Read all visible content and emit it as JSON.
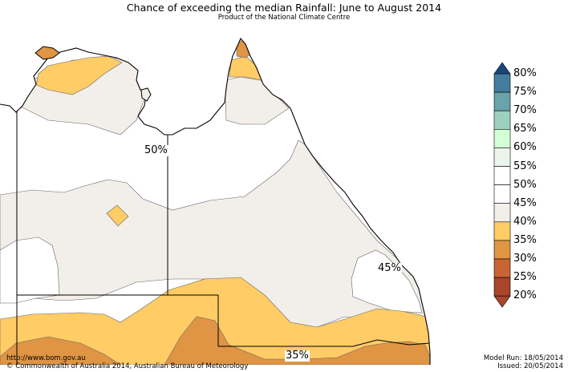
{
  "header": {
    "title": "Chance of exceeding the median Rainfall: June to August 2014",
    "subtitle": "Product of the National Climate Centre"
  },
  "map": {
    "contour_labels": [
      "50%",
      "45%",
      "35%"
    ]
  },
  "legend": {
    "items": [
      {
        "label": "80%",
        "color": "#18457a"
      },
      {
        "label": "75%",
        "color": "#437d9d"
      },
      {
        "label": "70%",
        "color": "#6aa3a9"
      },
      {
        "label": "65%",
        "color": "#9dd0bf"
      },
      {
        "label": "60%",
        "color": "#d3ffd6"
      },
      {
        "label": "55%",
        "color": "#ebf5ec"
      },
      {
        "label": "50%",
        "color": "#ffffff"
      },
      {
        "label": "45%",
        "color": "#ffffff"
      },
      {
        "label": "40%",
        "color": "#f2eee9"
      },
      {
        "label": "35%",
        "color": "#ffcc66"
      },
      {
        "label": "30%",
        "color": "#df9544"
      },
      {
        "label": "25%",
        "color": "#c96434"
      },
      {
        "label": "20%",
        "color": "#a8452a"
      }
    ]
  },
  "footer": {
    "url": "http://www.bom.gov.au",
    "copyright": "©  Commonwealth of Australia 2014, Australian Bureau of Meteorology",
    "model_run": "Model Run: 18/05/2014",
    "issued": "Issued: 20/05/2014"
  }
}
